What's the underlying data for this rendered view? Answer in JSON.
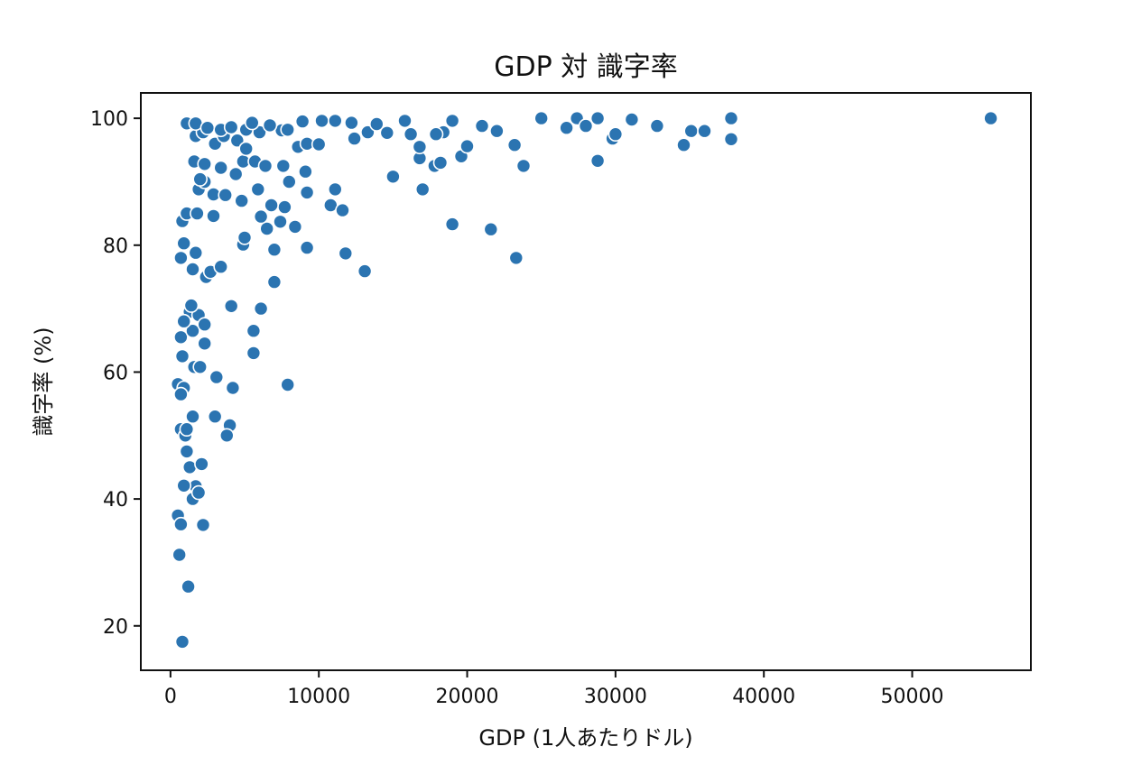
{
  "chart_data": {
    "type": "scatter",
    "title": "GDP 対 識字率",
    "xlabel": "GDP (1人あたりドル)",
    "ylabel": "識字率 (%)",
    "xlim": [
      -2000,
      58000
    ],
    "ylim": [
      13,
      104
    ],
    "xticks": [
      0,
      10000,
      20000,
      30000,
      40000,
      50000
    ],
    "yticks": [
      20,
      40,
      60,
      80,
      100
    ],
    "grid": false,
    "legend": "none",
    "color": "#2b74b1",
    "points": [
      [
        600,
        31.2
      ],
      [
        800,
        17.5
      ],
      [
        1200,
        26.2
      ],
      [
        500,
        37.4
      ],
      [
        700,
        36
      ],
      [
        2200,
        35.9
      ],
      [
        1500,
        40
      ],
      [
        1700,
        42
      ],
      [
        1900,
        41
      ],
      [
        900,
        42.1
      ],
      [
        1300,
        45
      ],
      [
        2100,
        45.5
      ],
      [
        1100,
        47.5
      ],
      [
        700,
        51
      ],
      [
        1000,
        50
      ],
      [
        1100,
        51
      ],
      [
        1500,
        53
      ],
      [
        3000,
        53
      ],
      [
        4000,
        51.6
      ],
      [
        3800,
        50
      ],
      [
        500,
        58.1
      ],
      [
        900,
        57.5
      ],
      [
        700,
        56.5
      ],
      [
        1600,
        60.8
      ],
      [
        2000,
        60.8
      ],
      [
        3100,
        59.2
      ],
      [
        4200,
        57.5
      ],
      [
        7900,
        58
      ],
      [
        800,
        62.5
      ],
      [
        700,
        65.5
      ],
      [
        1500,
        66.5
      ],
      [
        2300,
        64.5
      ],
      [
        1300,
        69.5
      ],
      [
        900,
        68
      ],
      [
        1900,
        69
      ],
      [
        2300,
        67.5
      ],
      [
        1400,
        70.5
      ],
      [
        4100,
        70.4
      ],
      [
        5600,
        66.5
      ],
      [
        5600,
        63
      ],
      [
        6100,
        70
      ],
      [
        7000,
        74.2
      ],
      [
        1500,
        76.2
      ],
      [
        2400,
        75
      ],
      [
        2700,
        75.8
      ],
      [
        3400,
        76.6
      ],
      [
        700,
        78
      ],
      [
        1700,
        78.8
      ],
      [
        900,
        80.3
      ],
      [
        4900,
        80.1
      ],
      [
        5000,
        81.2
      ],
      [
        6500,
        82.6
      ],
      [
        7000,
        79.3
      ],
      [
        9200,
        79.6
      ],
      [
        11800,
        78.7
      ],
      [
        13100,
        75.9
      ],
      [
        23300,
        78
      ],
      [
        800,
        83.8
      ],
      [
        1100,
        85
      ],
      [
        1800,
        85
      ],
      [
        2900,
        84.6
      ],
      [
        6100,
        84.5
      ],
      [
        7400,
        83.7
      ],
      [
        8400,
        82.9
      ],
      [
        7700,
        86
      ],
      [
        1900,
        88.8
      ],
      [
        2300,
        90
      ],
      [
        2900,
        88
      ],
      [
        3700,
        87.9
      ],
      [
        4800,
        87
      ],
      [
        5900,
        88.8
      ],
      [
        6800,
        86.3
      ],
      [
        8000,
        90
      ],
      [
        9200,
        88.3
      ],
      [
        10800,
        86.3
      ],
      [
        11100,
        88.8
      ],
      [
        11600,
        85.5
      ],
      [
        15000,
        90.8
      ],
      [
        17000,
        88.8
      ],
      [
        19000,
        83.3
      ],
      [
        21600,
        82.5
      ],
      [
        1600,
        93.2
      ],
      [
        2000,
        90.4
      ],
      [
        2300,
        92.8
      ],
      [
        3400,
        92.2
      ],
      [
        4400,
        91.2
      ],
      [
        4900,
        93.2
      ],
      [
        5700,
        93.2
      ],
      [
        6400,
        92.5
      ],
      [
        7600,
        92.5
      ],
      [
        9100,
        91.6
      ],
      [
        16800,
        93.7
      ],
      [
        17800,
        92.5
      ],
      [
        18200,
        93
      ],
      [
        19600,
        94
      ],
      [
        23800,
        92.5
      ],
      [
        28800,
        93.3
      ],
      [
        34600,
        95.8
      ],
      [
        1700,
        97.2
      ],
      [
        2200,
        97.8
      ],
      [
        3000,
        96
      ],
      [
        3600,
        97.2
      ],
      [
        4500,
        96.5
      ],
      [
        5100,
        95.2
      ],
      [
        6000,
        97.8
      ],
      [
        7500,
        98.1
      ],
      [
        8600,
        95.5
      ],
      [
        9200,
        96
      ],
      [
        10000,
        95.9
      ],
      [
        12400,
        96.8
      ],
      [
        13300,
        97.8
      ],
      [
        14600,
        97.7
      ],
      [
        16800,
        95.5
      ],
      [
        18400,
        97.8
      ],
      [
        20000,
        95.6
      ],
      [
        23200,
        95.8
      ],
      [
        29800,
        96.8
      ],
      [
        37800,
        96.7
      ],
      [
        1100,
        99.2
      ],
      [
        1700,
        99.2
      ],
      [
        2500,
        98.5
      ],
      [
        3400,
        98.2
      ],
      [
        4100,
        98.6
      ],
      [
        5100,
        98.2
      ],
      [
        5500,
        99.3
      ],
      [
        6700,
        98.9
      ],
      [
        7900,
        98.2
      ],
      [
        8900,
        99.5
      ],
      [
        10200,
        99.6
      ],
      [
        11100,
        99.6
      ],
      [
        12200,
        99.3
      ],
      [
        13900,
        99.1
      ],
      [
        15800,
        99.6
      ],
      [
        16200,
        97.5
      ],
      [
        17900,
        97.5
      ],
      [
        19000,
        99.6
      ],
      [
        21000,
        98.8
      ],
      [
        22000,
        98
      ],
      [
        25000,
        100
      ],
      [
        26700,
        98.5
      ],
      [
        27400,
        100
      ],
      [
        28000,
        98.8
      ],
      [
        28800,
        100
      ],
      [
        30000,
        97.5
      ],
      [
        31100,
        99.8
      ],
      [
        32800,
        98.8
      ],
      [
        35100,
        98
      ],
      [
        36000,
        98
      ],
      [
        37800,
        100
      ],
      [
        55300,
        100
      ]
    ]
  }
}
